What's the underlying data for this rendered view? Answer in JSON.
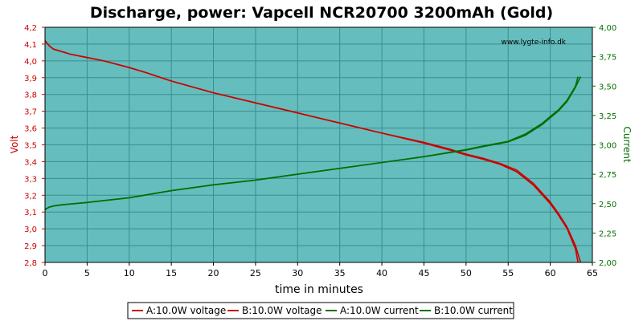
{
  "chart_data": {
    "type": "line",
    "title": "Discharge, power: Vapcell NCR20700 3200mAh (Gold)",
    "watermark": "www.lygte-info.dk",
    "xlabel": "time in minutes",
    "ylabel_left": "Volt",
    "ylabel_right": "Current",
    "xlim": [
      0,
      65
    ],
    "ylim_left": [
      2.8,
      4.2
    ],
    "ylim_right": [
      2.0,
      4.0
    ],
    "x_ticks": [
      "0",
      "5",
      "10",
      "15",
      "20",
      "25",
      "30",
      "35",
      "40",
      "45",
      "50",
      "55",
      "60",
      "65"
    ],
    "y_left_ticks": [
      "2,8",
      "2,9",
      "3,0",
      "3,1",
      "3,2",
      "3,3",
      "3,4",
      "3,5",
      "3,6",
      "3,7",
      "3,8",
      "3,9",
      "4,0",
      "4,1",
      "4,2"
    ],
    "y_right_ticks": [
      "2,00",
      "2,25",
      "2,50",
      "2,75",
      "3,00",
      "3,25",
      "3,50",
      "3,75",
      "4,00"
    ],
    "grid": true,
    "legend_position": "bottom",
    "colors": {
      "plot_background": "#66bdbd",
      "voltage": "#cc0000",
      "current": "#007000"
    },
    "series": [
      {
        "name": "A:10.0W voltage",
        "axis": "left",
        "x": [
          0,
          0.5,
          1,
          2,
          3,
          5,
          7,
          10,
          12,
          15,
          20,
          25,
          30,
          35,
          40,
          45,
          48,
          50,
          52,
          54,
          56,
          58,
          60,
          61,
          62,
          63,
          63.3
        ],
        "y": [
          4.12,
          4.09,
          4.07,
          4.055,
          4.04,
          4.02,
          4.0,
          3.96,
          3.93,
          3.88,
          3.81,
          3.75,
          3.69,
          3.63,
          3.57,
          3.51,
          3.47,
          3.44,
          3.415,
          3.385,
          3.34,
          3.26,
          3.15,
          3.08,
          3.0,
          2.88,
          2.8
        ]
      },
      {
        "name": "B:10.0W voltage",
        "axis": "left",
        "x": [
          0,
          0.5,
          1,
          2,
          3,
          5,
          7,
          10,
          12,
          15,
          20,
          25,
          30,
          35,
          40,
          45,
          48,
          50,
          52,
          54,
          56,
          58,
          60,
          61,
          62,
          63,
          63.6
        ],
        "y": [
          4.12,
          4.09,
          4.07,
          4.055,
          4.04,
          4.02,
          4.0,
          3.96,
          3.93,
          3.88,
          3.81,
          3.75,
          3.69,
          3.63,
          3.57,
          3.515,
          3.475,
          3.445,
          3.42,
          3.39,
          3.35,
          3.27,
          3.16,
          3.09,
          3.01,
          2.9,
          2.8
        ]
      },
      {
        "name": "A:10.0W current",
        "axis": "right",
        "x": [
          0,
          0.5,
          1,
          2,
          5,
          10,
          15,
          20,
          25,
          30,
          35,
          40,
          45,
          50,
          52,
          55,
          57,
          59,
          60,
          61,
          62,
          63,
          63.3
        ],
        "y": [
          2.45,
          2.47,
          2.48,
          2.49,
          2.51,
          2.55,
          2.61,
          2.66,
          2.7,
          2.75,
          2.8,
          2.85,
          2.9,
          2.96,
          2.99,
          3.03,
          3.09,
          3.18,
          3.24,
          3.3,
          3.38,
          3.5,
          3.58
        ]
      },
      {
        "name": "B:10.0W current",
        "axis": "right",
        "x": [
          0,
          0.5,
          1,
          2,
          5,
          10,
          15,
          20,
          25,
          30,
          35,
          40,
          45,
          50,
          52,
          55,
          57,
          59,
          60,
          61,
          62,
          63,
          63.6
        ],
        "y": [
          2.45,
          2.47,
          2.48,
          2.49,
          2.51,
          2.55,
          2.61,
          2.66,
          2.7,
          2.75,
          2.8,
          2.85,
          2.9,
          2.955,
          2.985,
          3.025,
          3.08,
          3.17,
          3.23,
          3.29,
          3.37,
          3.49,
          3.58
        ]
      }
    ]
  }
}
